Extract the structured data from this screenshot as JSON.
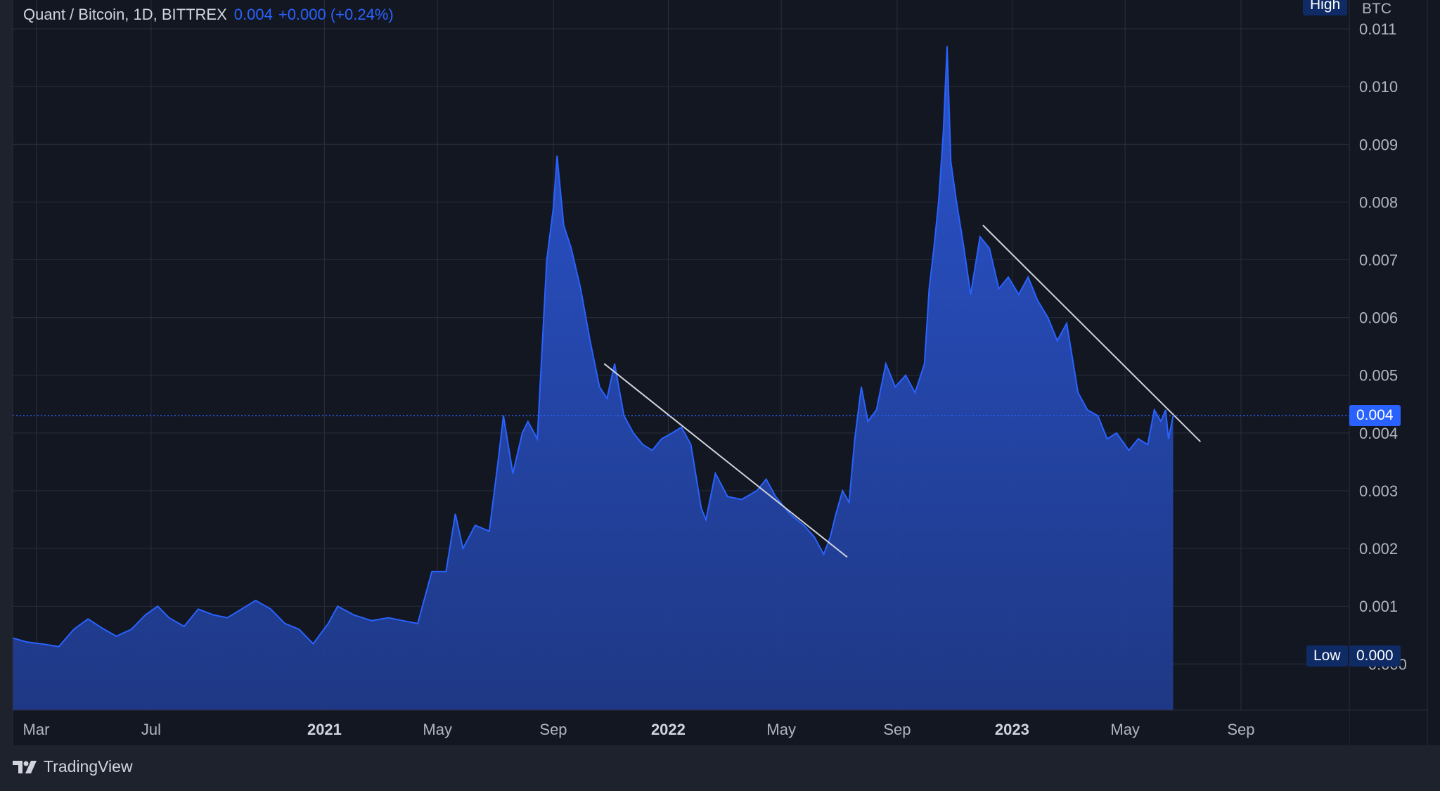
{
  "legend": {
    "symbol": "Quant / Bitcoin, 1D, BITTREX",
    "price": "0.004",
    "change": "+0.000 (+0.24%)"
  },
  "scale": {
    "unit": "BTC",
    "high_label": "High",
    "low_label": "Low",
    "low_value": "0.000",
    "current_price": "0.004"
  },
  "brand": {
    "name": "TradingView"
  },
  "colors": {
    "background": "#131722",
    "panel": "#1e222d",
    "grid": "#2a2e39",
    "line": "#2962ff",
    "fill_top": "#2b56d6",
    "fill_bottom": "#1f3a8a",
    "trendline": "#d1d4dc",
    "badge": "#0f2b66",
    "price_badge": "#2962ff"
  },
  "chart_data": {
    "type": "area",
    "ylim": [
      -0.0008,
      0.0115
    ],
    "y_ticks": [
      {
        "value": 0.011,
        "label": "0.011"
      },
      {
        "value": 0.01,
        "label": "0.010"
      },
      {
        "value": 0.009,
        "label": "0.009"
      },
      {
        "value": 0.008,
        "label": "0.008"
      },
      {
        "value": 0.007,
        "label": "0.007"
      },
      {
        "value": 0.006,
        "label": "0.006"
      },
      {
        "value": 0.005,
        "label": "0.005"
      },
      {
        "value": 0.004,
        "label": "0.004"
      },
      {
        "value": 0.003,
        "label": "0.003"
      },
      {
        "value": 0.002,
        "label": "0.002"
      },
      {
        "value": 0.001,
        "label": "0.001"
      },
      {
        "value": 0.0,
        "label": "−0.000"
      }
    ],
    "x_ticks": [
      {
        "date": "2020-03-01",
        "label": "Mar",
        "bold": false
      },
      {
        "date": "2020-07-01",
        "label": "Jul",
        "bold": false
      },
      {
        "date": "2021-01-01",
        "label": "2021",
        "bold": true
      },
      {
        "date": "2021-05-01",
        "label": "May",
        "bold": false
      },
      {
        "date": "2021-09-01",
        "label": "Sep",
        "bold": false
      },
      {
        "date": "2022-01-01",
        "label": "2022",
        "bold": true
      },
      {
        "date": "2022-05-01",
        "label": "May",
        "bold": false
      },
      {
        "date": "2022-09-01",
        "label": "Sep",
        "bold": false
      },
      {
        "date": "2023-01-01",
        "label": "2023",
        "bold": true
      },
      {
        "date": "2023-05-01",
        "label": "May",
        "bold": false
      },
      {
        "date": "2023-09-01",
        "label": "Sep",
        "bold": false
      }
    ],
    "xlim": [
      "2020-02-05",
      "2023-12-25"
    ],
    "price_line": 0.0043,
    "points": [
      [
        "2020-02-05",
        0.00045
      ],
      [
        "2020-02-20",
        0.00038
      ],
      [
        "2020-03-10",
        0.00034
      ],
      [
        "2020-03-25",
        0.0003
      ],
      [
        "2020-04-10",
        0.0006
      ],
      [
        "2020-04-25",
        0.00078
      ],
      [
        "2020-05-10",
        0.00062
      ],
      [
        "2020-05-25",
        0.00048
      ],
      [
        "2020-06-10",
        0.0006
      ],
      [
        "2020-06-25",
        0.00085
      ],
      [
        "2020-07-08",
        0.001
      ],
      [
        "2020-07-20",
        0.0008
      ],
      [
        "2020-08-05",
        0.00065
      ],
      [
        "2020-08-20",
        0.00095
      ],
      [
        "2020-09-05",
        0.00085
      ],
      [
        "2020-09-20",
        0.0008
      ],
      [
        "2020-10-05",
        0.00095
      ],
      [
        "2020-10-20",
        0.0011
      ],
      [
        "2020-11-05",
        0.00095
      ],
      [
        "2020-11-20",
        0.0007
      ],
      [
        "2020-12-05",
        0.0006
      ],
      [
        "2020-12-20",
        0.00035
      ],
      [
        "2021-01-05",
        0.0007
      ],
      [
        "2021-01-15",
        0.001
      ],
      [
        "2021-02-01",
        0.00085
      ],
      [
        "2021-02-20",
        0.00075
      ],
      [
        "2021-03-10",
        0.0008
      ],
      [
        "2021-03-25",
        0.00075
      ],
      [
        "2021-04-10",
        0.0007
      ],
      [
        "2021-04-25",
        0.0016
      ],
      [
        "2021-05-10",
        0.0016
      ],
      [
        "2021-05-20",
        0.0026
      ],
      [
        "2021-05-28",
        0.002
      ],
      [
        "2021-06-10",
        0.0024
      ],
      [
        "2021-06-25",
        0.0023
      ],
      [
        "2021-07-05",
        0.0036
      ],
      [
        "2021-07-10",
        0.0043
      ],
      [
        "2021-07-20",
        0.0033
      ],
      [
        "2021-07-30",
        0.004
      ],
      [
        "2021-08-05",
        0.0042
      ],
      [
        "2021-08-15",
        0.0039
      ],
      [
        "2021-08-25",
        0.007
      ],
      [
        "2021-09-01",
        0.0079
      ],
      [
        "2021-09-05",
        0.0088
      ],
      [
        "2021-09-12",
        0.0076
      ],
      [
        "2021-09-20",
        0.0072
      ],
      [
        "2021-09-30",
        0.0065
      ],
      [
        "2021-10-10",
        0.0056
      ],
      [
        "2021-10-20",
        0.0048
      ],
      [
        "2021-10-28",
        0.0046
      ],
      [
        "2021-11-05",
        0.0052
      ],
      [
        "2021-11-15",
        0.0043
      ],
      [
        "2021-11-25",
        0.004
      ],
      [
        "2021-12-05",
        0.0038
      ],
      [
        "2021-12-15",
        0.0037
      ],
      [
        "2021-12-25",
        0.0039
      ],
      [
        "2022-01-05",
        0.004
      ],
      [
        "2022-01-15",
        0.0041
      ],
      [
        "2022-01-25",
        0.0038
      ],
      [
        "2022-02-05",
        0.0027
      ],
      [
        "2022-02-10",
        0.0025
      ],
      [
        "2022-02-20",
        0.0033
      ],
      [
        "2022-03-05",
        0.0029
      ],
      [
        "2022-03-20",
        0.00285
      ],
      [
        "2022-04-05",
        0.003
      ],
      [
        "2022-04-15",
        0.0032
      ],
      [
        "2022-04-25",
        0.0029
      ],
      [
        "2022-05-10",
        0.0026
      ],
      [
        "2022-05-25",
        0.0024
      ],
      [
        "2022-06-05",
        0.0022
      ],
      [
        "2022-06-15",
        0.0019
      ],
      [
        "2022-06-22",
        0.0022
      ],
      [
        "2022-06-28",
        0.0026
      ],
      [
        "2022-07-05",
        0.003
      ],
      [
        "2022-07-12",
        0.0028
      ],
      [
        "2022-07-18",
        0.0039
      ],
      [
        "2022-07-25",
        0.0048
      ],
      [
        "2022-08-01",
        0.0042
      ],
      [
        "2022-08-10",
        0.0044
      ],
      [
        "2022-08-20",
        0.0052
      ],
      [
        "2022-08-30",
        0.0048
      ],
      [
        "2022-09-10",
        0.005
      ],
      [
        "2022-09-20",
        0.0047
      ],
      [
        "2022-09-30",
        0.0052
      ],
      [
        "2022-10-05",
        0.0065
      ],
      [
        "2022-10-10",
        0.0072
      ],
      [
        "2022-10-15",
        0.008
      ],
      [
        "2022-10-20",
        0.0092
      ],
      [
        "2022-10-24",
        0.0107
      ],
      [
        "2022-10-28",
        0.0087
      ],
      [
        "2022-11-03",
        0.008
      ],
      [
        "2022-11-10",
        0.0073
      ],
      [
        "2022-11-18",
        0.0064
      ],
      [
        "2022-11-28",
        0.0074
      ],
      [
        "2022-12-08",
        0.0072
      ],
      [
        "2022-12-18",
        0.0065
      ],
      [
        "2022-12-28",
        0.0067
      ],
      [
        "2023-01-08",
        0.0064
      ],
      [
        "2023-01-18",
        0.0067
      ],
      [
        "2023-01-28",
        0.0063
      ],
      [
        "2023-02-08",
        0.006
      ],
      [
        "2023-02-18",
        0.0056
      ],
      [
        "2023-02-28",
        0.0059
      ],
      [
        "2023-03-05",
        0.0054
      ],
      [
        "2023-03-12",
        0.0047
      ],
      [
        "2023-03-22",
        0.0044
      ],
      [
        "2023-04-02",
        0.0043
      ],
      [
        "2023-04-12",
        0.0039
      ],
      [
        "2023-04-22",
        0.004
      ],
      [
        "2023-05-05",
        0.0037
      ],
      [
        "2023-05-15",
        0.0039
      ],
      [
        "2023-05-25",
        0.0038
      ],
      [
        "2023-06-01",
        0.0044
      ],
      [
        "2023-06-08",
        0.0042
      ],
      [
        "2023-06-13",
        0.0044
      ],
      [
        "2023-06-16",
        0.0039
      ],
      [
        "2023-06-21",
        0.0043
      ]
    ],
    "trendlines": [
      {
        "from": [
          "2021-10-25",
          0.0052
        ],
        "to": [
          "2022-07-10",
          0.00185
        ]
      },
      {
        "from": [
          "2022-12-01",
          0.0076
        ],
        "to": [
          "2023-07-20",
          0.00385
        ]
      }
    ]
  }
}
